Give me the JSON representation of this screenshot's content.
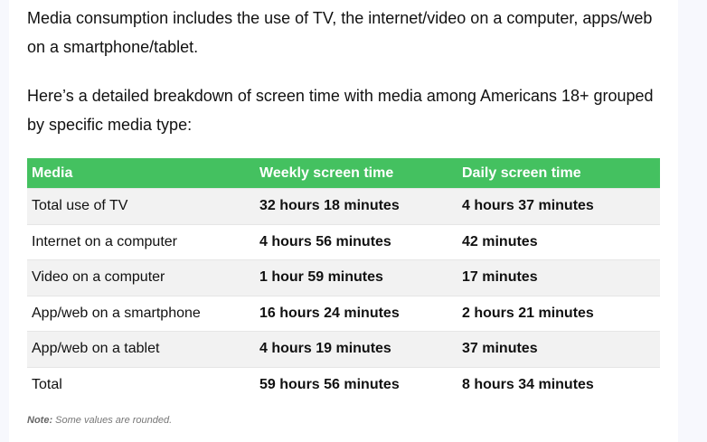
{
  "intro": "Media consumption includes the use of TV, the internet/video on a computer, apps/web on a smartphone/tablet.",
  "lead": "Here’s a detailed breakdown of screen time with media among Americans 18+ grouped by specific media type:",
  "table": {
    "headers": [
      "Media",
      "Weekly screen time",
      "Daily screen time"
    ],
    "rows": [
      [
        "Total use of TV",
        "32 hours 18 minutes",
        "4 hours 37 minutes"
      ],
      [
        "Internet on a computer",
        "4 hours 56 minutes",
        "42 minutes"
      ],
      [
        "Video on a computer",
        "1 hour 59 minutes",
        "17 minutes"
      ],
      [
        "App/web on a smartphone",
        "16 hours 24 minutes",
        "2 hours 21 minutes"
      ],
      [
        "App/web on a tablet",
        "4 hours 19 minutes",
        "37 minutes"
      ],
      [
        "Total",
        "59 hours 56 minutes",
        "8 hours 34 minutes"
      ]
    ]
  },
  "note": {
    "label": "Note:",
    "text": " Some values are rounded."
  },
  "colors": {
    "header": "#44c160"
  }
}
